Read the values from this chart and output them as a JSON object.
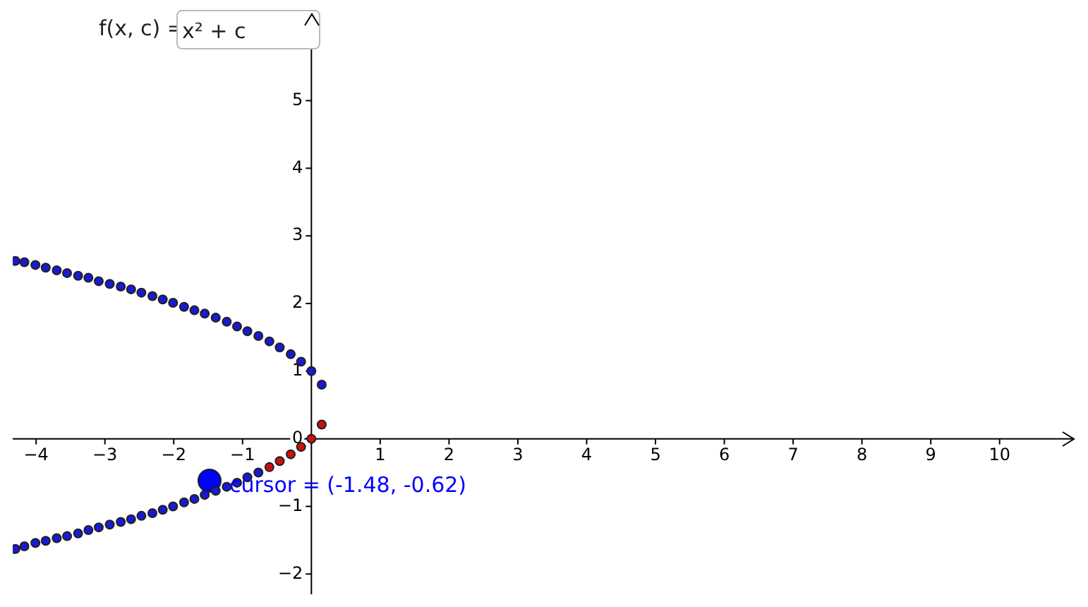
{
  "chart_data": {
    "type": "scatter",
    "title": "f(x, c) =",
    "annotations": [
      "x² + c",
      {
        "text": "cursor = (-1.48, -0.62)",
        "x": -1.48,
        "y": -0.62
      }
    ],
    "xlim": [
      -4.34,
      11.1
    ],
    "ylim": [
      -2.3,
      6.3
    ],
    "xticks": [
      -4,
      -3,
      -2,
      -1,
      {
        "value": 0,
        "label": null
      },
      1,
      2,
      3,
      4,
      5,
      6,
      7,
      8,
      9,
      10
    ],
    "yticks": [
      -2,
      -1,
      0,
      1,
      2,
      3,
      4,
      5
    ],
    "grid": false,
    "legend": false,
    "marker": "circle",
    "series": [
      {
        "color": "#1a1ad0",
        "x": [
          -4.3,
          -4.17,
          -4.01,
          -3.86,
          -3.7,
          -3.55,
          -3.39,
          -3.24,
          -3.09,
          -2.93,
          -2.77,
          -2.62,
          -2.47,
          -2.31,
          -2.16,
          -2.01,
          -1.85,
          -1.7,
          -1.55,
          -1.39,
          -1.23,
          -1.08,
          -0.93,
          -0.77,
          -0.61,
          -0.46,
          -0.3,
          -0.15,
          0.0,
          0.15
        ],
        "values": [
          2.63,
          2.61,
          2.57,
          2.53,
          2.49,
          2.45,
          2.41,
          2.38,
          2.33,
          2.29,
          2.25,
          2.21,
          2.16,
          2.11,
          2.06,
          2.01,
          1.95,
          1.9,
          1.85,
          1.79,
          1.73,
          1.66,
          1.59,
          1.52,
          1.44,
          1.35,
          1.25,
          1.14,
          1.0,
          0.8
        ]
      },
      {
        "color": "#1a1ad0",
        "x": [
          -4.3,
          -4.17,
          -4.01,
          -3.86,
          -3.7,
          -3.55,
          -3.39,
          -3.24,
          -3.09,
          -2.93,
          -2.77,
          -2.62,
          -2.47,
          -2.31,
          -2.16,
          -2.01,
          -1.85,
          -1.7,
          -1.55,
          -1.39,
          -1.23,
          -1.08,
          -0.93,
          -0.77
        ],
        "values": [
          -1.63,
          -1.59,
          -1.54,
          -1.51,
          -1.47,
          -1.44,
          -1.4,
          -1.35,
          -1.31,
          -1.27,
          -1.23,
          -1.19,
          -1.14,
          -1.1,
          -1.05,
          -1.0,
          -0.94,
          -0.89,
          -0.83,
          -0.77,
          -0.71,
          -0.65,
          -0.57,
          -0.5
        ]
      },
      {
        "color": "#cc1010",
        "x": [
          -0.61,
          -0.46,
          -0.3,
          -0.15,
          0.0,
          0.15
        ],
        "values": [
          -0.42,
          -0.33,
          -0.23,
          -0.12,
          0.0,
          0.21
        ]
      },
      {
        "type": "bubble",
        "color": "#0000ff",
        "x": [
          -1.48
        ],
        "values": [
          -0.62
        ],
        "sizes": [
          1
        ]
      }
    ]
  }
}
